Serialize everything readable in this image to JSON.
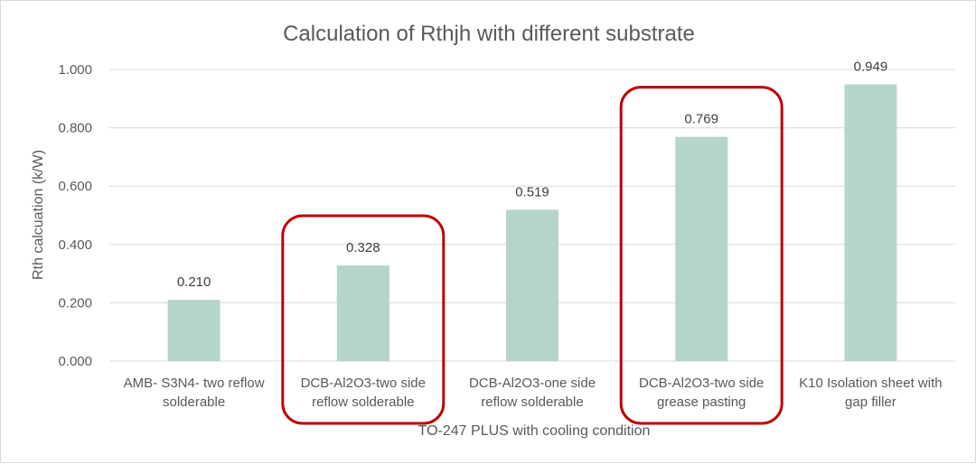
{
  "chart_data": {
    "type": "bar",
    "title": "Calculation of Rthjh with different substrate",
    "xlabel": "TO-247 PLUS with cooling condition",
    "ylabel": "Rth calcuation (k/W)",
    "ylim": [
      0,
      1.0
    ],
    "yticks": [
      "0.000",
      "0.200",
      "0.400",
      "0.600",
      "0.800",
      "1.000"
    ],
    "grid": true,
    "categories": [
      [
        "AMB- S3N4- two reflow",
        "solderable"
      ],
      [
        "DCB-Al2O3-two side",
        "reflow solderable"
      ],
      [
        "DCB-Al2O3-one side",
        "reflow solderable"
      ],
      [
        "DCB-Al2O3-two side",
        "grease pasting"
      ],
      [
        "K10 Isolation sheet with",
        "gap filler"
      ]
    ],
    "values": [
      0.21,
      0.328,
      0.519,
      0.769,
      0.949
    ],
    "value_labels": [
      "0.210",
      "0.328",
      "0.519",
      "0.769",
      "0.949"
    ],
    "highlighted_categories": [
      1,
      3
    ],
    "colors": {
      "bar": "#b5d4cb",
      "highlight": "#c00000",
      "grid": "#d9d9d9",
      "text": "#595959"
    }
  }
}
